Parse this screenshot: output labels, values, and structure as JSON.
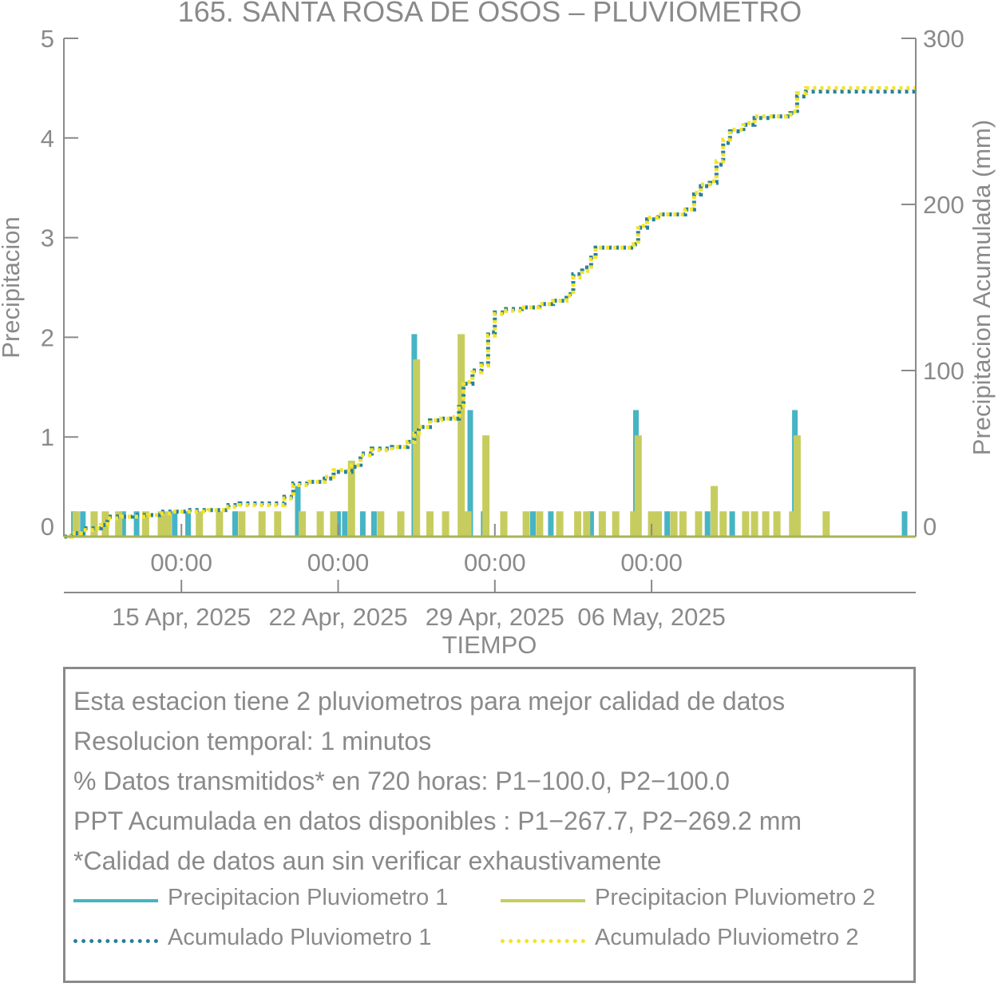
{
  "title": "165. SANTA ROSA DE OSOS – PLUVIOMETRO",
  "chart_data": {
    "type": "bar+line",
    "xlabel": "TIEMPO",
    "ylabel_left": "Precipitacion",
    "ylabel_right": "Precipitacion Acumulada (mm)",
    "x_time_ticks": [
      "00:00",
      "00:00",
      "00:00",
      "00:00"
    ],
    "x_date_ticks": [
      "15 Apr, 2025",
      "22 Apr, 2025",
      "29 Apr, 2025",
      "06 May, 2025"
    ],
    "x_tick_days": [
      15,
      22,
      29,
      36
    ],
    "xlim_days": [
      9.75,
      47.8
    ],
    "ylim_left": [
      0,
      5
    ],
    "yticks_left": [
      0,
      1,
      2,
      3,
      4,
      5
    ],
    "ylim_right": [
      0,
      300
    ],
    "yticks_right": [
      0,
      100,
      200,
      300
    ],
    "colors": {
      "p1": "#46b4c4",
      "p2": "#c6cd5e",
      "acum1": "#2a7f9e",
      "acum2": "#f2e42c",
      "axis": "#8a8a8a"
    },
    "precip_p1": [
      [
        10.2,
        0.254
      ],
      [
        10.6,
        0.254
      ],
      [
        12.4,
        0.254
      ],
      [
        13.0,
        0.254
      ],
      [
        14.7,
        0.254
      ],
      [
        15.3,
        0.254
      ],
      [
        17.4,
        0.254
      ],
      [
        20.2,
        0.508
      ],
      [
        22.0,
        0.254
      ],
      [
        22.3,
        0.254
      ],
      [
        23.1,
        0.254
      ],
      [
        23.6,
        0.254
      ],
      [
        25.4,
        2.032
      ],
      [
        27.9,
        1.27
      ],
      [
        28.5,
        0.254
      ],
      [
        30.7,
        0.254
      ],
      [
        31.5,
        0.254
      ],
      [
        33.3,
        0.254
      ],
      [
        35.3,
        1.27
      ],
      [
        36.7,
        0.254
      ],
      [
        38.5,
        0.254
      ],
      [
        39.6,
        0.254
      ],
      [
        42.4,
        1.27
      ],
      [
        47.3,
        0.254
      ]
    ],
    "precip_p2": [
      [
        10.3,
        0.254
      ],
      [
        11.1,
        0.254
      ],
      [
        11.6,
        0.254
      ],
      [
        12.2,
        0.254
      ],
      [
        13.4,
        0.254
      ],
      [
        14.1,
        0.254
      ],
      [
        14.4,
        0.254
      ],
      [
        15.8,
        0.254
      ],
      [
        16.7,
        0.254
      ],
      [
        17.7,
        0.254
      ],
      [
        18.6,
        0.254
      ],
      [
        19.3,
        0.254
      ],
      [
        20.4,
        0.254
      ],
      [
        21.2,
        0.254
      ],
      [
        21.8,
        0.254
      ],
      [
        22.6,
        0.762
      ],
      [
        23.9,
        0.254
      ],
      [
        24.8,
        0.254
      ],
      [
        25.5,
        1.778
      ],
      [
        26.1,
        0.254
      ],
      [
        26.8,
        0.254
      ],
      [
        27.5,
        2.032
      ],
      [
        27.8,
        0.254
      ],
      [
        28.6,
        1.016
      ],
      [
        29.4,
        0.254
      ],
      [
        30.4,
        0.254
      ],
      [
        31.0,
        0.254
      ],
      [
        31.9,
        0.254
      ],
      [
        32.7,
        0.254
      ],
      [
        33.1,
        0.254
      ],
      [
        33.8,
        0.254
      ],
      [
        34.4,
        0.254
      ],
      [
        35.2,
        0.254
      ],
      [
        35.4,
        1.016
      ],
      [
        36.0,
        0.254
      ],
      [
        36.3,
        0.254
      ],
      [
        37.0,
        0.254
      ],
      [
        37.4,
        0.254
      ],
      [
        38.1,
        0.254
      ],
      [
        38.8,
        0.508
      ],
      [
        39.2,
        0.254
      ],
      [
        40.2,
        0.254
      ],
      [
        40.6,
        0.254
      ],
      [
        41.1,
        0.254
      ],
      [
        41.6,
        0.254
      ],
      [
        42.3,
        0.254
      ],
      [
        42.5,
        1.016
      ],
      [
        43.8,
        0.254
      ]
    ],
    "acum_p1": [
      [
        9.75,
        0
      ],
      [
        10.1,
        2
      ],
      [
        10.6,
        5
      ],
      [
        11.1,
        5
      ],
      [
        11.4,
        7
      ],
      [
        11.7,
        12
      ],
      [
        12.3,
        12
      ],
      [
        12.8,
        13
      ],
      [
        13.5,
        13
      ],
      [
        14.0,
        15
      ],
      [
        14.6,
        15
      ],
      [
        15.2,
        16
      ],
      [
        16.2,
        16
      ],
      [
        17.1,
        19
      ],
      [
        17.6,
        20
      ],
      [
        19.2,
        20
      ],
      [
        19.6,
        24
      ],
      [
        20.0,
        32
      ],
      [
        20.7,
        33
      ],
      [
        21.4,
        35
      ],
      [
        21.8,
        39
      ],
      [
        22.6,
        42
      ],
      [
        23.0,
        50
      ],
      [
        23.5,
        53
      ],
      [
        24.4,
        54
      ],
      [
        25.1,
        57
      ],
      [
        25.4,
        62
      ],
      [
        25.6,
        66
      ],
      [
        26.1,
        70
      ],
      [
        26.6,
        71
      ],
      [
        27.2,
        71
      ],
      [
        27.4,
        78
      ],
      [
        27.6,
        92
      ],
      [
        28.0,
        100
      ],
      [
        28.4,
        104
      ],
      [
        28.7,
        123
      ],
      [
        29.0,
        135
      ],
      [
        29.5,
        137
      ],
      [
        30.2,
        138
      ],
      [
        31.0,
        140
      ],
      [
        31.6,
        142
      ],
      [
        32.2,
        146
      ],
      [
        32.5,
        158
      ],
      [
        32.9,
        162
      ],
      [
        33.3,
        168
      ],
      [
        33.5,
        174
      ],
      [
        34.2,
        174
      ],
      [
        34.8,
        174
      ],
      [
        35.2,
        176
      ],
      [
        35.4,
        186
      ],
      [
        35.8,
        191
      ],
      [
        36.3,
        194
      ],
      [
        37.0,
        194
      ],
      [
        37.5,
        197
      ],
      [
        37.9,
        206
      ],
      [
        38.2,
        211
      ],
      [
        38.6,
        213
      ],
      [
        38.9,
        224
      ],
      [
        39.2,
        237
      ],
      [
        39.5,
        244
      ],
      [
        40.1,
        248
      ],
      [
        40.6,
        252
      ],
      [
        41.3,
        253
      ],
      [
        42.0,
        253
      ],
      [
        42.2,
        255
      ],
      [
        42.5,
        265
      ],
      [
        42.9,
        268
      ],
      [
        44.5,
        268
      ],
      [
        45.8,
        268
      ],
      [
        47.8,
        268
      ]
    ],
    "acum_p2": [
      [
        9.75,
        0
      ],
      [
        10.1,
        2
      ],
      [
        10.6,
        4
      ],
      [
        11.1,
        5
      ],
      [
        11.4,
        7
      ],
      [
        11.7,
        11
      ],
      [
        12.3,
        12
      ],
      [
        12.8,
        12
      ],
      [
        13.5,
        13
      ],
      [
        14.0,
        14
      ],
      [
        14.6,
        15
      ],
      [
        15.2,
        15
      ],
      [
        16.2,
        16
      ],
      [
        17.1,
        18
      ],
      [
        17.6,
        19
      ],
      [
        19.2,
        19
      ],
      [
        19.6,
        23
      ],
      [
        20.0,
        31
      ],
      [
        20.7,
        33
      ],
      [
        21.4,
        36
      ],
      [
        21.8,
        40
      ],
      [
        22.6,
        43
      ],
      [
        23.0,
        49
      ],
      [
        23.5,
        52
      ],
      [
        24.4,
        54
      ],
      [
        25.1,
        57
      ],
      [
        25.4,
        62
      ],
      [
        25.6,
        66
      ],
      [
        26.1,
        70
      ],
      [
        26.6,
        71
      ],
      [
        27.2,
        72
      ],
      [
        27.4,
        79
      ],
      [
        27.6,
        93
      ],
      [
        28.0,
        99
      ],
      [
        28.4,
        103
      ],
      [
        28.7,
        121
      ],
      [
        29.0,
        134
      ],
      [
        29.5,
        136
      ],
      [
        30.2,
        138
      ],
      [
        31.0,
        140
      ],
      [
        31.6,
        142
      ],
      [
        32.2,
        145
      ],
      [
        32.5,
        156
      ],
      [
        32.9,
        160
      ],
      [
        33.3,
        167
      ],
      [
        33.5,
        174
      ],
      [
        34.2,
        174
      ],
      [
        34.8,
        174
      ],
      [
        35.2,
        176
      ],
      [
        35.4,
        187
      ],
      [
        35.8,
        192
      ],
      [
        36.3,
        194
      ],
      [
        37.0,
        194
      ],
      [
        37.5,
        197
      ],
      [
        37.9,
        207
      ],
      [
        38.2,
        212
      ],
      [
        38.6,
        214
      ],
      [
        38.9,
        226
      ],
      [
        39.2,
        239
      ],
      [
        39.5,
        245
      ],
      [
        40.1,
        249
      ],
      [
        40.6,
        253
      ],
      [
        41.3,
        253
      ],
      [
        42.0,
        254
      ],
      [
        42.2,
        256
      ],
      [
        42.5,
        267
      ],
      [
        42.9,
        270
      ],
      [
        44.5,
        270
      ],
      [
        45.8,
        270
      ],
      [
        47.8,
        270
      ]
    ]
  },
  "info": {
    "line1": "Esta estacion tiene 2 pluviometros para mejor calidad de datos",
    "line2": "Resolucion temporal: 1 minutos",
    "line3": "% Datos transmitidos* en 720 horas: P1−100.0, P2−100.0",
    "line4": "PPT Acumulada en datos disponibles : P1−267.7, P2−269.2 mm",
    "line5": "*Calidad de datos aun sin verificar exhaustivamente"
  },
  "legend": {
    "p1": "Precipitacion Pluviometro 1",
    "p2": "Precipitacion Pluviometro 2",
    "acum1": "Acumulado Pluviometro 1",
    "acum2": "Acumulado Pluviometro 2"
  }
}
